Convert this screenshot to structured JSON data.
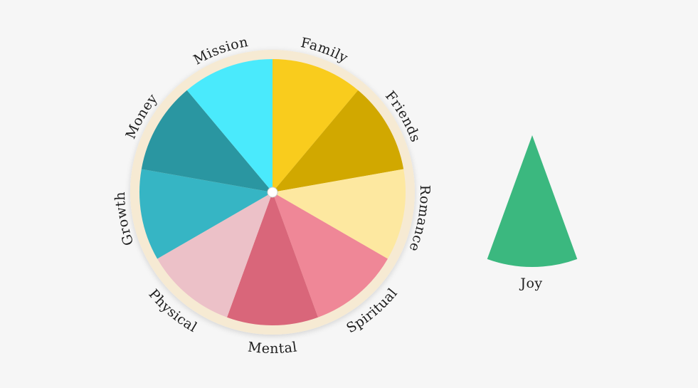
{
  "wheel": {
    "segments": [
      {
        "label": "Family",
        "color": "#f9cc1d"
      },
      {
        "label": "Friends",
        "color": "#d1a800"
      },
      {
        "label": "Romance",
        "color": "#fde8a0"
      },
      {
        "label": "Spiritual",
        "color": "#ef8797"
      },
      {
        "label": "Mental",
        "color": "#d9667a"
      },
      {
        "label": "Physical",
        "color": "#ecc1c8"
      },
      {
        "label": "Growth",
        "color": "#36b5c4"
      },
      {
        "label": "Money",
        "color": "#2a96a1"
      },
      {
        "label": "Mission",
        "color": "#4aeafc"
      }
    ]
  },
  "detached": {
    "label": "Joy",
    "color": "#3bb87f"
  }
}
